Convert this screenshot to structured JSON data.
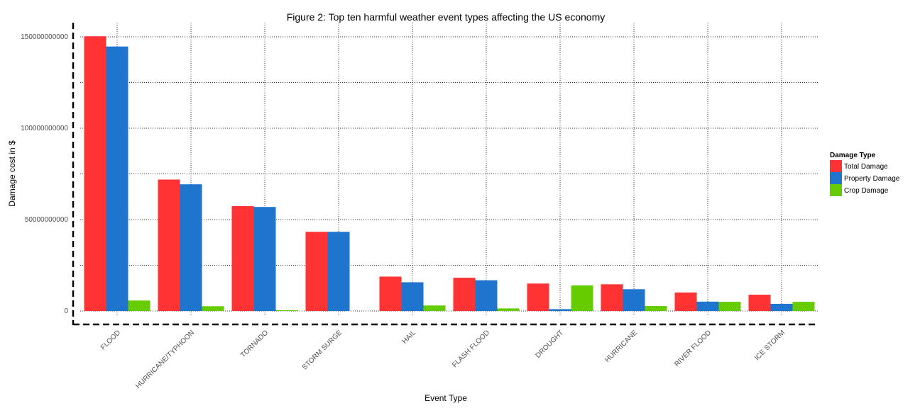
{
  "chart_data": {
    "type": "bar",
    "title": "Figure 2: Top ten harmful weather event types affecting the US economy",
    "xlabel": "Event Type",
    "ylabel": "Damage cost in $",
    "categories": [
      "FLOOD",
      "HURRICANE/TYPHOON",
      "TORNADO",
      "STORM SURGE",
      "HAIL",
      "FLASH FLOOD",
      "DROUGHT",
      "HURRICANE",
      "RIVER FLOOD",
      "ICE STORM"
    ],
    "series": [
      {
        "name": "Total Damage",
        "color": "#ff3333",
        "values": [
          150300000000,
          71900000000,
          57400000000,
          43300000000,
          18800000000,
          18200000000,
          15000000000,
          14600000000,
          10100000000,
          8900000000
        ]
      },
      {
        "name": "Property Damage",
        "color": "#1f75cd",
        "values": [
          144700000000,
          69300000000,
          56900000000,
          43300000000,
          15700000000,
          16800000000,
          1000000000,
          11900000000,
          5100000000,
          3900000000
        ]
      },
      {
        "name": "Crop Damage",
        "color": "#66cc00",
        "values": [
          5700000000,
          2600000000,
          400000000,
          0,
          3000000000,
          1400000000,
          14000000000,
          2700000000,
          5000000000,
          5000000000
        ]
      }
    ],
    "yticks": [
      0,
      50000000000,
      100000000000,
      150000000000
    ],
    "ytick_labels": [
      "0",
      "50000000000",
      "100000000000",
      "150000000000"
    ],
    "ylim": [
      0,
      151000000000
    ],
    "grid": true,
    "legend": {
      "title": "Damage Type",
      "position": "right"
    }
  }
}
